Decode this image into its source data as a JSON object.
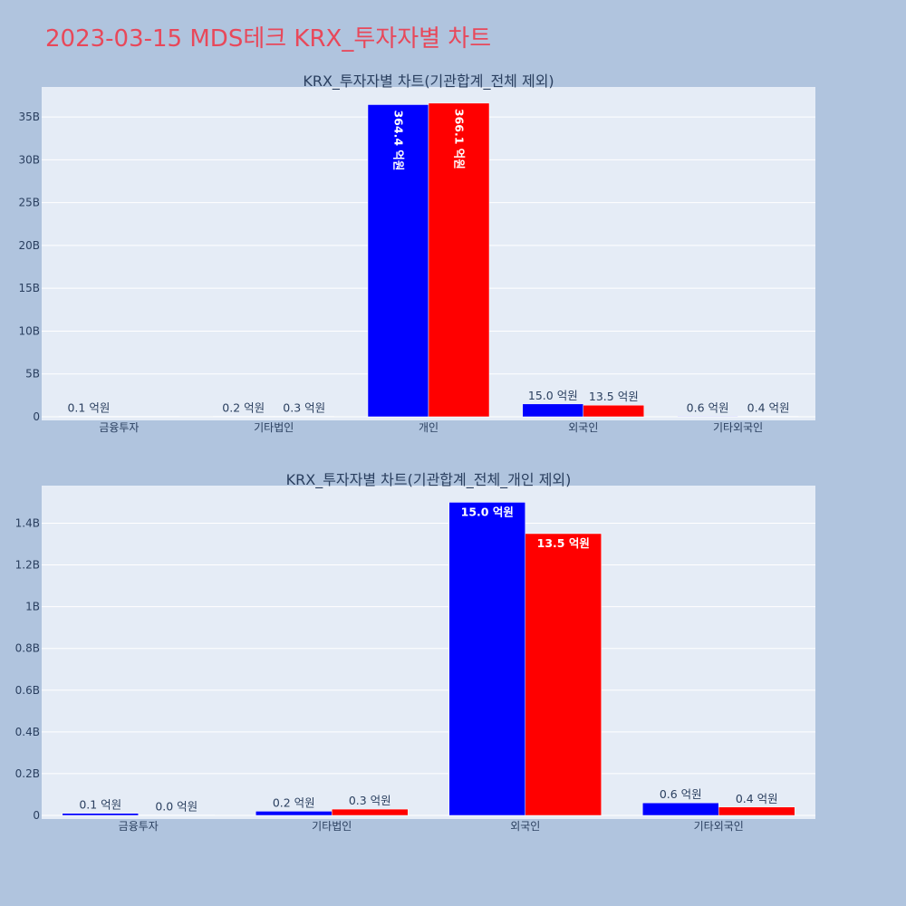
{
  "page": {
    "title": "2023-03-15 MDS테크 KRX_투자자별 차트"
  },
  "colors": {
    "background": "#b0c4de",
    "plot_bg": "#e5ecf6",
    "title": "#e8485a",
    "buy": "#0000ff",
    "sell": "#ff0000"
  },
  "chart_data": [
    {
      "type": "bar",
      "title": "KRX_투자자별 차트(기관합계_전체 제외)",
      "categories": [
        "금융투자",
        "기타법인",
        "개인",
        "외국인",
        "기타외국인"
      ],
      "series": [
        {
          "color": "#0000ff",
          "values": [
            10000000.0,
            20000000.0,
            36440000000.0,
            1500000000.0,
            60000000.0
          ],
          "labels": [
            "0.1 억원",
            "0.2 억원",
            "364.4 억원",
            "15.0 억원",
            "0.6 억원"
          ]
        },
        {
          "color": "#ff0000",
          "values": [
            0,
            30000000.0,
            36610000000.0,
            1350000000.0,
            40000000.0
          ],
          "labels": [
            "",
            "0.3 억원",
            "366.1 억원",
            "13.5 억원",
            "0.4 억원"
          ]
        }
      ],
      "ylim": [
        0,
        38500000000.0
      ],
      "yticks": [
        0,
        5000000000.0,
        10000000000.0,
        15000000000.0,
        20000000000.0,
        25000000000.0,
        30000000000.0,
        35000000000.0
      ],
      "ytick_labels": [
        "0",
        "5B",
        "10B",
        "15B",
        "20B",
        "25B",
        "30B",
        "35B"
      ],
      "grid": true
    },
    {
      "type": "bar",
      "title": "KRX_투자자별 차트(기관합계_전체_개인 제외)",
      "categories": [
        "금융투자",
        "기타법인",
        "외국인",
        "기타외국인"
      ],
      "series": [
        {
          "color": "#0000ff",
          "values": [
            10000000.0,
            20000000.0,
            1500000000.0,
            60000000.0
          ],
          "labels": [
            "0.1 억원",
            "0.2 억원",
            "15.0 억원",
            "0.6 억원"
          ]
        },
        {
          "color": "#ff0000",
          "values": [
            1000000.0,
            30000000.0,
            1350000000.0,
            40000000.0
          ],
          "labels": [
            "0.0 억원",
            "0.3 억원",
            "13.5 억원",
            "0.4 억원"
          ]
        }
      ],
      "ylim": [
        0,
        1580000000.0
      ],
      "yticks": [
        0,
        200000000.0,
        400000000.0,
        600000000.0,
        800000000.0,
        1000000000.0,
        1200000000.0,
        1400000000.0
      ],
      "ytick_labels": [
        "0",
        "0.2B",
        "0.4B",
        "0.6B",
        "0.8B",
        "1B",
        "1.2B",
        "1.4B"
      ],
      "grid": true
    }
  ]
}
